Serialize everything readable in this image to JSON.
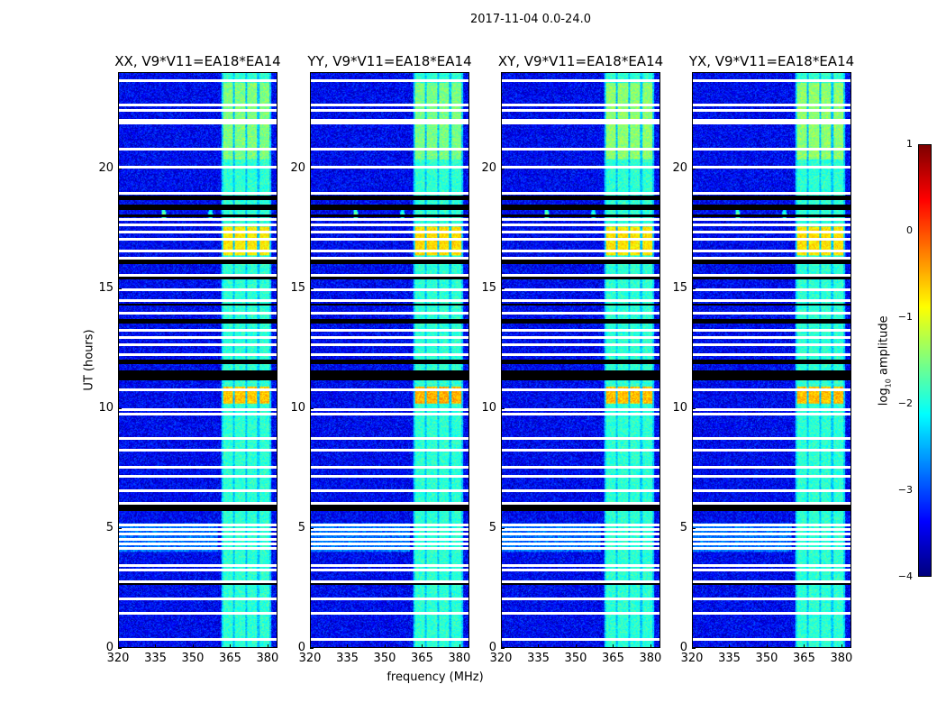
{
  "chart_data": {
    "type": "heatmap",
    "title": "2017-11-04 0.0-24.0",
    "xlabel": "frequency (MHz)",
    "ylabel": "UT (hours)",
    "xlim": [
      320,
      384
    ],
    "ylim": [
      0,
      24
    ],
    "xticks": [
      "320",
      "335",
      "350",
      "365",
      "380"
    ],
    "xtick_values": [
      320,
      335,
      350,
      365,
      380
    ],
    "yticks": [
      "0",
      "5",
      "10",
      "15",
      "20"
    ],
    "ytick_values": [
      0,
      5,
      10,
      15,
      20
    ],
    "colorbar": {
      "label": "log10 amplitude",
      "label_main": "log",
      "label_sub": "10",
      "label_rest": " amplitude",
      "range": [
        -4,
        1
      ],
      "ticks": [
        "1",
        "0",
        "−1",
        "−2",
        "−3",
        "−4"
      ],
      "tick_values": [
        1,
        0,
        -1,
        -2,
        -3,
        -4
      ],
      "colormap": "jet"
    },
    "background_level": -3.4,
    "bands_mhz": [
      [
        362,
        366
      ],
      [
        367,
        371
      ],
      [
        372,
        376
      ],
      [
        377,
        381
      ]
    ],
    "band_level": -1.9,
    "episodes": [
      {
        "t": [
          20.4,
          23.6
        ],
        "level": -1.5
      },
      {
        "t": [
          16.4,
          17.6
        ],
        "level": -0.8
      },
      {
        "t": [
          10.2,
          10.9
        ],
        "level": -0.6
      },
      {
        "t": [
          4.0,
          5.2
        ],
        "level": -2.3,
        "broadband": true
      }
    ],
    "flagged_white_hours": [
      23.7,
      22.7,
      22.45,
      22.05,
      21.95,
      20.85,
      20.1,
      19.0,
      17.9,
      17.7,
      17.4,
      17.1,
      16.6,
      16.3,
      15.6,
      15.0,
      14.55,
      14.0,
      13.3,
      13.0,
      12.7,
      12.3,
      10.8,
      10.0,
      9.8,
      8.8,
      8.3,
      7.6,
      7.2,
      6.6,
      6.1,
      5.2,
      5.0,
      4.8,
      4.6,
      4.4,
      4.2,
      3.5,
      3.3,
      2.8,
      2.1,
      1.5,
      0.4
    ],
    "flagged_black_hours": [
      [
        18.7,
        18.9
      ],
      [
        18.3,
        18.5
      ],
      [
        18.0,
        18.1
      ],
      [
        16.05,
        16.25
      ],
      [
        15.4,
        15.5
      ],
      [
        14.3,
        14.4
      ],
      [
        13.55,
        13.75
      ],
      [
        11.85,
        12.05
      ],
      [
        11.2,
        11.6
      ],
      [
        5.75,
        6.0
      ],
      [
        2.65,
        2.8
      ]
    ],
    "rfi_spots": [
      {
        "f": 338,
        "t": 18.1,
        "level": -1.3
      },
      {
        "f": 357,
        "t": 18.1,
        "level": -1.6
      }
    ],
    "panels": [
      {
        "title": "XX, V9*V11=EA18*EA14",
        "scale": 1.0
      },
      {
        "title": "YY, V9*V11=EA18*EA14",
        "scale": 1.15
      },
      {
        "title": "XY, V9*V11=EA18*EA14",
        "scale": 0.95
      },
      {
        "title": "YX, V9*V11=EA18*EA14",
        "scale": 0.95
      }
    ]
  }
}
